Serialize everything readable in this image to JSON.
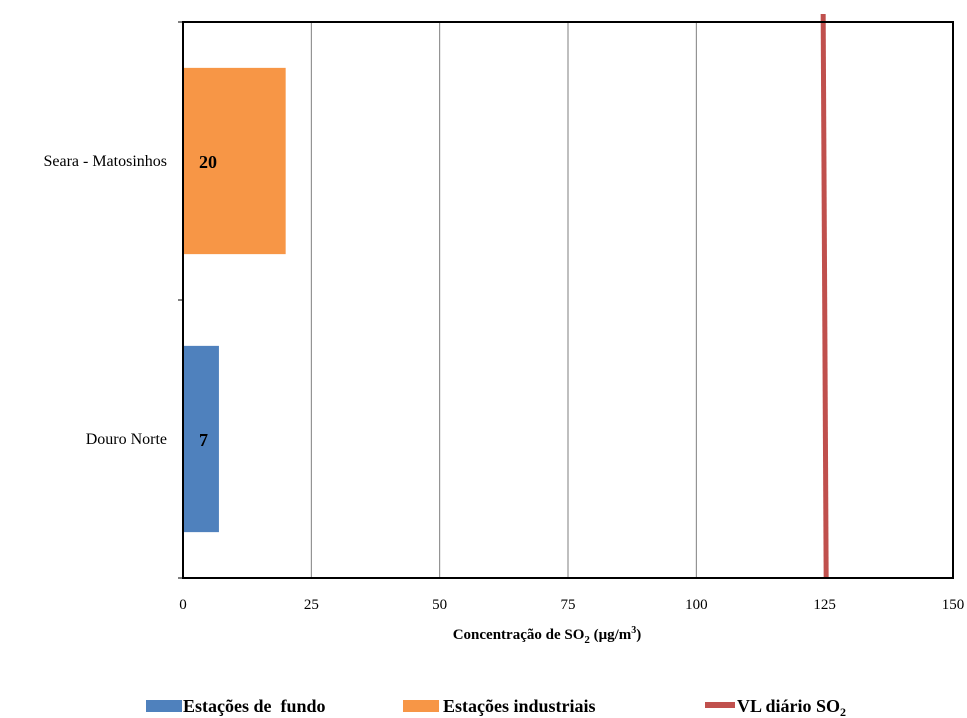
{
  "chart_data": {
    "type": "bar",
    "orientation": "horizontal",
    "categories": [
      "Douro Norte",
      "Seara - Matosinhos"
    ],
    "series": [
      {
        "name": "Estações de  fundo",
        "color": "#4f81bd",
        "values": [
          7,
          null
        ]
      },
      {
        "name": "Estações industriais",
        "color": "#f79646",
        "values": [
          null,
          20
        ]
      }
    ],
    "data_labels": [
      "7",
      "20"
    ],
    "reference_line": {
      "name": "VL diário SO",
      "name_sub": "2",
      "value": 125,
      "color": "#c0504d"
    },
    "xaxis": {
      "ticks": [
        0,
        25,
        50,
        75,
        100,
        125,
        150
      ],
      "xlim": [
        0,
        150
      ],
      "label": "Concentração de SO",
      "label_sub": "2",
      "label_unit": " (μg/m",
      "label_sup": "3",
      "label_end": ")"
    },
    "grid": "vertical",
    "legend_position": "bottom"
  }
}
